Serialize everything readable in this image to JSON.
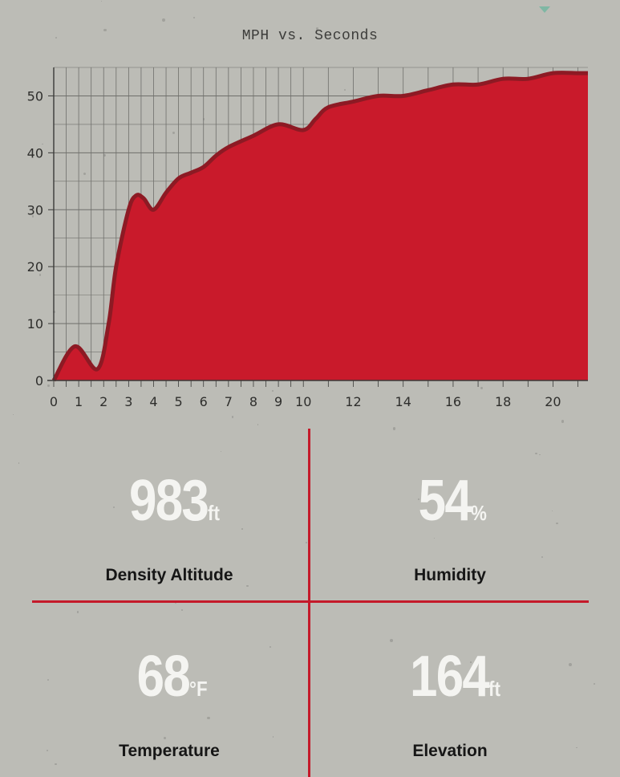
{
  "chart_data": {
    "type": "area",
    "title": "MPH vs. Seconds",
    "xlabel": "",
    "ylabel": "",
    "ylim": [
      0,
      55
    ],
    "xlim": [
      0,
      21.4
    ],
    "y_ticks": [
      0,
      10,
      20,
      30,
      40,
      50
    ],
    "x_ticks": [
      0,
      1,
      2,
      3,
      4,
      5,
      6,
      7,
      8,
      9,
      10,
      12,
      14,
      16,
      18,
      20
    ],
    "grid": true,
    "series": [
      {
        "x": [
          0,
          0.85,
          1.75,
          2.2,
          2.5,
          3.0,
          3.3,
          3.6,
          4.0,
          4.5,
          5.0,
          5.5,
          6.0,
          6.5,
          7.0,
          8.0,
          9.0,
          10.0,
          10.5,
          11.0,
          12.0,
          13.0,
          14.0,
          15.0,
          16.0,
          17.0,
          18.0,
          19.0,
          20.0,
          21.0,
          21.4
        ],
        "y": [
          0,
          6,
          2,
          10,
          20,
          30,
          32.5,
          32,
          30,
          33,
          35.5,
          36.5,
          37.5,
          39.5,
          41,
          43,
          45,
          44,
          46,
          48,
          49,
          50,
          50,
          51,
          52,
          52,
          53,
          53,
          54,
          54,
          54
        ]
      }
    ],
    "colors": {
      "fill": "#c91a2b",
      "line": "#8d1a24",
      "grid": "#6f6f6b",
      "axis": "#3a3a38"
    }
  },
  "stats": {
    "density_altitude": {
      "value": "983",
      "unit": "ft",
      "label": "Density Altitude"
    },
    "humidity": {
      "value": "54",
      "unit": "%",
      "label": "Humidity"
    },
    "temperature": {
      "value": "68",
      "unit": "°F",
      "label": "Temperature"
    },
    "elevation": {
      "value": "164",
      "unit": "ft",
      "label": "Elevation"
    }
  }
}
